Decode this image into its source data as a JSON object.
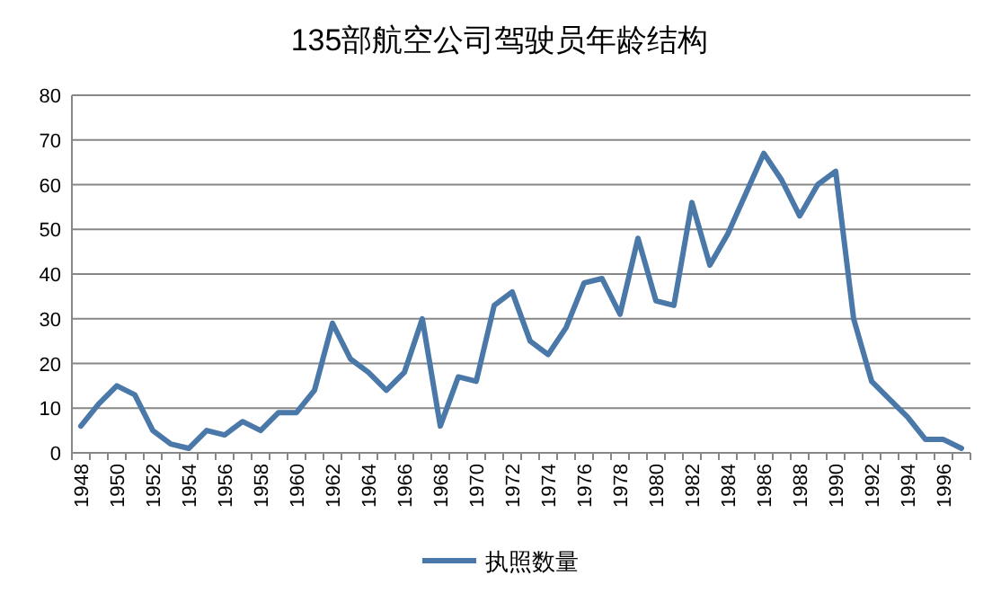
{
  "chart_data": {
    "type": "line",
    "title": "135部航空公司驾驶员年龄结构",
    "categories": [
      "1948",
      null,
      "1950",
      null,
      "1952",
      null,
      "1954",
      null,
      "1956",
      null,
      "1958",
      null,
      "1960",
      null,
      "1962",
      null,
      "1964",
      null,
      "1966",
      null,
      "1968",
      null,
      "1970",
      null,
      "1972",
      null,
      "1974",
      null,
      "1976",
      null,
      "1978",
      null,
      "1980",
      null,
      "1982",
      null,
      "1984",
      null,
      "1986",
      null,
      "1988",
      null,
      "1990",
      null,
      "1992",
      null,
      "1994",
      null,
      "1996",
      null
    ],
    "series": [
      {
        "name": "执照数量",
        "color": "#4a78a8",
        "values": [
          6,
          11,
          15,
          13,
          5,
          2,
          1,
          5,
          4,
          7,
          5,
          9,
          9,
          14,
          29,
          21,
          18,
          14,
          18,
          30,
          6,
          17,
          16,
          33,
          36,
          25,
          22,
          28,
          38,
          39,
          31,
          48,
          34,
          33,
          56,
          42,
          49,
          58,
          67,
          61,
          53,
          60,
          63,
          30,
          16,
          12,
          8,
          3,
          3,
          1
        ]
      }
    ],
    "ylim": [
      0,
      80
    ],
    "yticks": [
      0,
      10,
      20,
      30,
      40,
      50,
      60,
      70,
      80
    ],
    "grid": "y",
    "legend": "bottom",
    "marker": "none",
    "line_style": "solid"
  }
}
